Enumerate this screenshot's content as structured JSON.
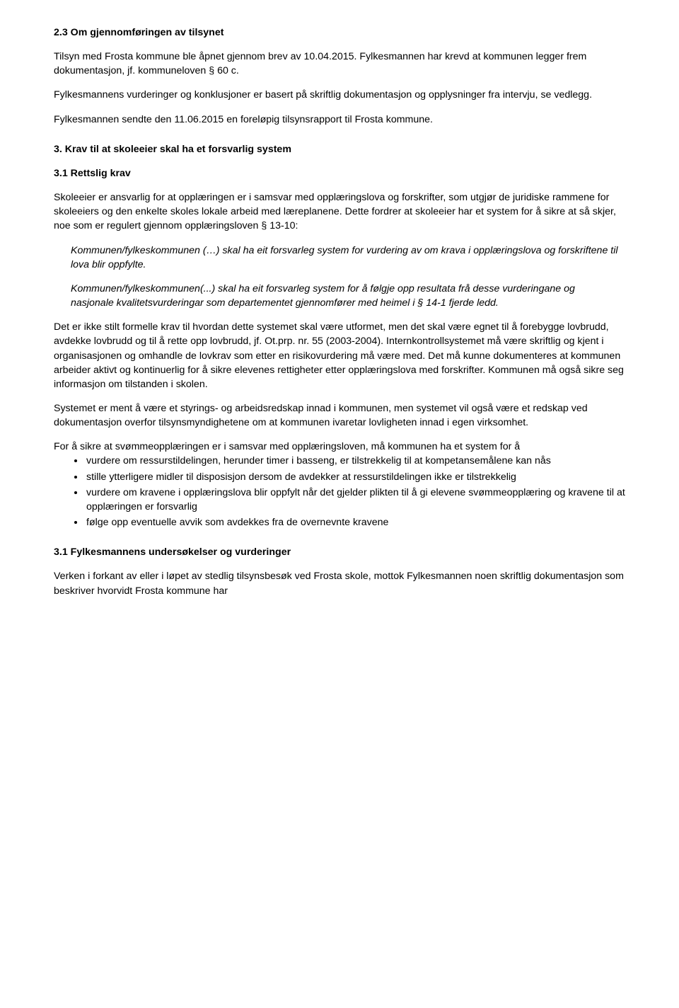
{
  "s23": {
    "heading": "2.3 Om gjennomføringen av tilsynet",
    "p1": "Tilsyn med Frosta kommune ble åpnet gjennom brev av 10.04.2015. Fylkesmannen har krevd at kommunen legger frem dokumentasjon, jf. kommuneloven § 60 c.",
    "p2": "Fylkesmannens vurderinger og konklusjoner er basert på skriftlig dokumentasjon og opplysninger fra intervju, se vedlegg.",
    "p3": "Fylkesmannen sendte den 11.06.2015 en foreløpig tilsynsrapport til Frosta kommune."
  },
  "s3": {
    "heading": "3. Krav til at skoleeier skal ha et forsvarlig system",
    "s31heading": "3.1 Rettslig krav",
    "p1": "Skoleeier er ansvarlig for at opplæringen er i samsvar med opplæringslova og forskrifter, som utgjør de juridiske rammene for skoleeiers og den enkelte skoles lokale arbeid med læreplanene. Dette fordrer at skoleeier har et system for å sikre at så skjer, noe som er regulert gjennom opplæringsloven § 13-10:",
    "quote1": "Kommunen/fylkeskommunen (…) skal ha eit forsvarleg system for vurdering av om krava i opplæringslova og forskriftene til lova blir oppfylte.",
    "quote2": "Kommunen/fylkeskommunen(...) skal ha eit forsvarleg system for å følgje opp resultata frå desse vurderingane og nasjonale kvalitetsvurderingar som departementet gjennomfører med heimel i § 14-1 fjerde ledd.",
    "p2": "Det er ikke stilt formelle krav til hvordan dette systemet skal være utformet, men det skal være egnet til å forebygge lovbrudd, avdekke lovbrudd og til å rette opp lovbrudd, jf. Ot.prp. nr. 55 (2003-2004). Internkontrollsystemet må være skriftlig og kjent i organisasjonen og omhandle de lovkrav som etter en risikovurdering må være med. Det må kunne dokumenteres at kommunen arbeider aktivt og kontinuerlig for å sikre elevenes rettigheter etter opplæringslova med forskrifter. Kommunen må også sikre seg informasjon om tilstanden i skolen.",
    "p3": "Systemet er ment å være et styrings- og arbeidsredskap innad i kommunen, men systemet vil også være et redskap ved dokumentasjon overfor tilsynsmyndighetene om at kommunen ivaretar lovligheten innad i egen virksomhet.",
    "p4intro": "For å sikre at svømmeopplæringen er i samsvar med opplæringsloven, må kommunen ha et system for å",
    "bullets": [
      "vurdere om ressurstildelingen, herunder timer i basseng, er tilstrekkelig til at kompetansemålene kan nås",
      "stille ytterligere midler til disposisjon dersom de avdekker at ressurstildelingen ikke er tilstrekkelig",
      "vurdere om kravene i opplæringslova blir oppfylt når det gjelder plikten til å gi elevene svømmeopplæring og kravene til at opplæringen er forsvarlig",
      "følge opp eventuelle avvik som avdekkes fra de overnevnte kravene"
    ],
    "s31bheading": "3.1 Fylkesmannens undersøkelser og vurderinger",
    "p5": "Verken i forkant av eller i løpet av stedlig tilsynsbesøk ved Frosta skole, mottok Fylkesmannen noen skriftlig dokumentasjon som beskriver hvorvidt Frosta kommune har"
  }
}
